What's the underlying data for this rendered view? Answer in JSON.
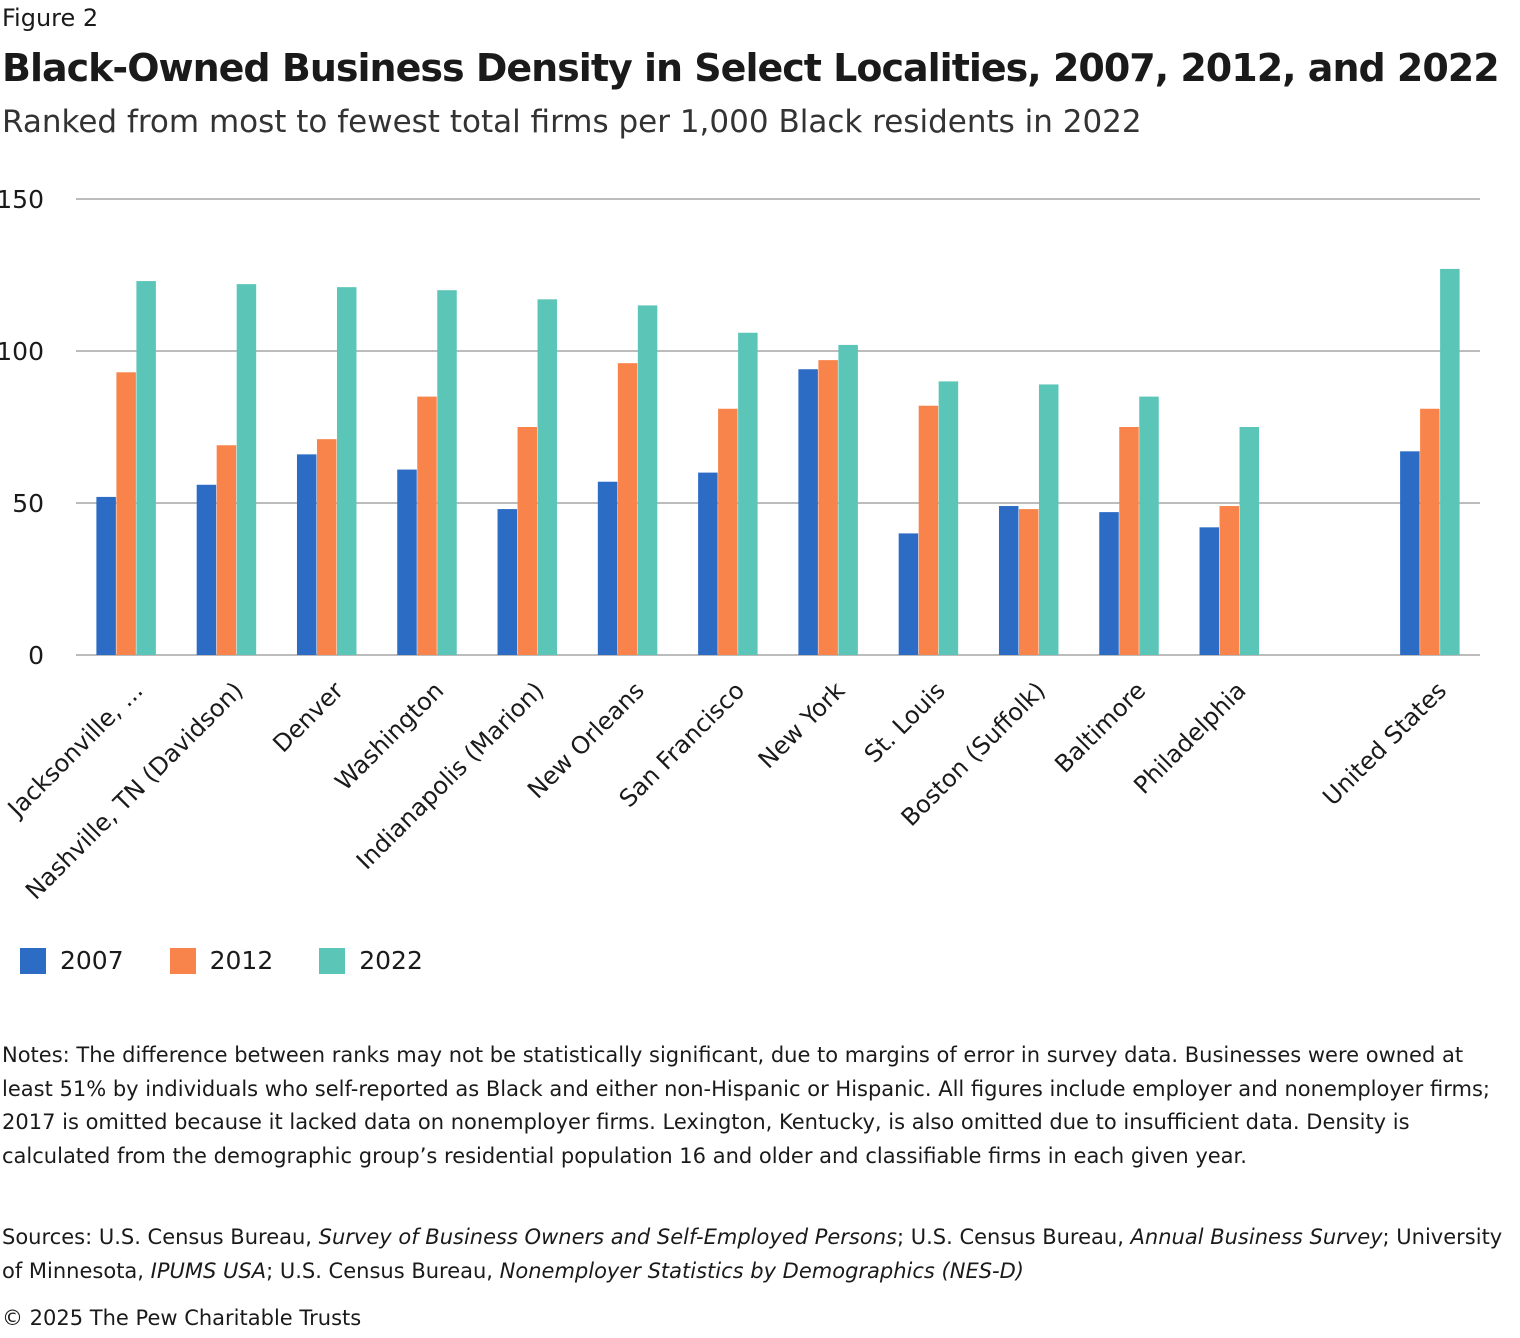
{
  "figure_label": "Figure 2",
  "title": "Black-Owned Business Density in Select Localities, 2007, 2012, and 2022",
  "subtitle": "Ranked from most to fewest total firms per 1,000 Black residents in 2022",
  "colors": {
    "2007": "#2c6cc4",
    "2012": "#f8844c",
    "2022": "#5bc6b8",
    "grid": "#a6a6a6"
  },
  "chart_data": {
    "type": "bar",
    "title": "Black-Owned Business Density in Select Localities, 2007, 2012, and 2022",
    "xlabel": "",
    "ylabel": "",
    "ylim": [
      0,
      150
    ],
    "yticks": [
      0,
      50,
      100,
      150
    ],
    "grid": true,
    "legend_position": "bottom-left",
    "categories": [
      "Jacksonville, ...",
      "Nashville, TN (Davidson)",
      "Denver",
      "Washington",
      "Indianapolis (Marion)",
      "New Orleans",
      "San Francisco",
      "New York",
      "St. Louis",
      "Boston (Suffolk)",
      "Baltimore",
      "Philadelphia",
      "",
      "United States"
    ],
    "series": [
      {
        "name": "2007",
        "values": [
          52,
          56,
          66,
          61,
          48,
          57,
          60,
          94,
          40,
          49,
          47,
          42,
          null,
          67
        ]
      },
      {
        "name": "2012",
        "values": [
          93,
          69,
          71,
          85,
          75,
          96,
          81,
          97,
          82,
          48,
          75,
          49,
          null,
          81
        ]
      },
      {
        "name": "2022",
        "values": [
          123,
          122,
          121,
          120,
          117,
          115,
          106,
          102,
          90,
          89,
          85,
          75,
          null,
          127
        ]
      }
    ]
  },
  "notes": "Notes: The difference between ranks may not be statistically significant, due to margins of error in survey data. Businesses were owned at least 51% by individuals who self-reported as Black and either non-Hispanic or Hispanic. All figures include employer and nonemployer firms; 2017 is omitted because it lacked data on nonemployer firms. Lexington, Kentucky, is also omitted due to insufficient data. Density is calculated from the demographic group’s residential population 16 and older and classifiable firms in each given year.",
  "sources": {
    "prefix": "Sources: U.S. Census Bureau, ",
    "survey1": "Survey of Business Owners and Self-Employed Persons",
    "sep1": "; U.S. Census Bureau, ",
    "survey2": "Annual Business Survey",
    "sep2": "; University of Minnesota, ",
    "survey3": "IPUMS USA",
    "sep3": "; U.S. Census Bureau, ",
    "survey4": "Nonemployer Statistics by Demographics (NES-D)"
  },
  "copyright": "© 2025 The Pew Charitable Trusts"
}
